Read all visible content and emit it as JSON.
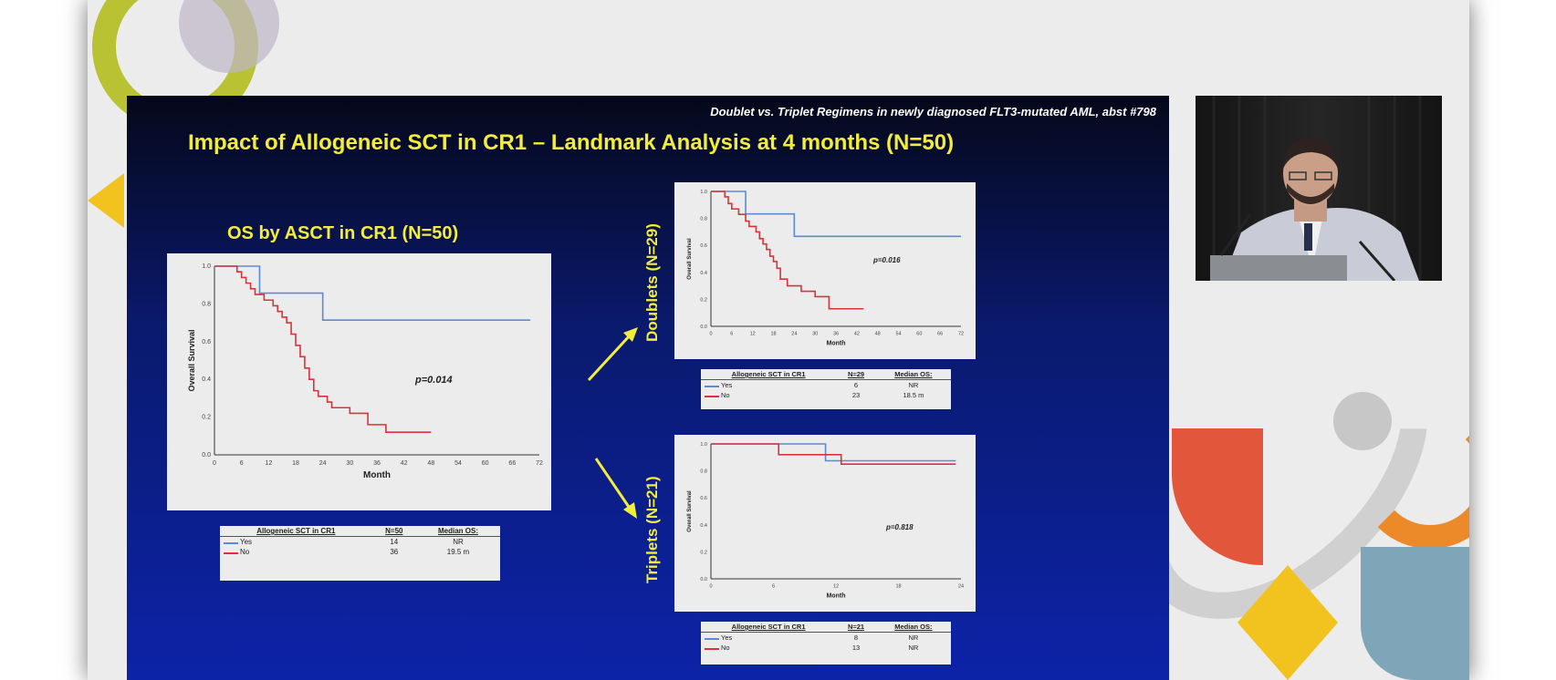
{
  "slide": {
    "header": "Doublet vs. Triplet Regimens in newly diagnosed FLT3-mutated AML, abst #798",
    "title": "Impact of Allogeneic SCT in CR1 – Landmark Analysis at 4 months (N=50)",
    "subtitle": "OS by ASCT in CR1 (N=50)",
    "doublets_label": "Doublets (N=29)",
    "triplets_label": "Triplets (N=21)"
  },
  "colors": {
    "yes": "#5b8bd6",
    "no": "#d8333a",
    "title": "#f2ec3c",
    "arrow": "#f2ec3c"
  },
  "chart_data": [
    {
      "type": "line",
      "title": "OS by ASCT in CR1 (N=50)",
      "xlabel": "Month",
      "ylabel": "Overall Survival",
      "annotation": "p=0.014",
      "xlim": [
        0,
        72
      ],
      "ylim": [
        0,
        1.0
      ],
      "xticks": [
        0,
        6,
        12,
        18,
        24,
        30,
        36,
        42,
        48,
        54,
        60,
        66,
        72
      ],
      "yticks": [
        0.0,
        0.2,
        0.4,
        0.6,
        0.8,
        1.0
      ],
      "series": [
        {
          "name": "Yes",
          "x": [
            0,
            10,
            10,
            24,
            24,
            70
          ],
          "y": [
            1.0,
            1.0,
            0.857,
            0.857,
            0.714,
            0.714
          ]
        },
        {
          "name": "No",
          "x": [
            0,
            5,
            6,
            7,
            8,
            9,
            11,
            13,
            14,
            15,
            16,
            17,
            18,
            19,
            20,
            21,
            22,
            23,
            25,
            26,
            30,
            34,
            38,
            42,
            48
          ],
          "y": [
            1.0,
            0.97,
            0.94,
            0.91,
            0.88,
            0.85,
            0.82,
            0.79,
            0.76,
            0.73,
            0.7,
            0.64,
            0.58,
            0.52,
            0.46,
            0.4,
            0.34,
            0.31,
            0.28,
            0.25,
            0.22,
            0.16,
            0.12,
            0.12,
            0.12
          ]
        }
      ]
    },
    {
      "type": "line",
      "xlabel": "Month",
      "ylabel": "Overall Survival",
      "annotation": "p=0.016",
      "xlim": [
        0,
        72
      ],
      "ylim": [
        0,
        1.0
      ],
      "xticks": [
        0,
        6,
        12,
        18,
        24,
        30,
        36,
        42,
        48,
        54,
        60,
        66,
        72
      ],
      "yticks": [
        0.0,
        0.2,
        0.4,
        0.6,
        0.8,
        1.0
      ],
      "series": [
        {
          "name": "Yes",
          "x": [
            0,
            10,
            10,
            24,
            24,
            72
          ],
          "y": [
            1.0,
            1.0,
            0.833,
            0.833,
            0.667,
            0.667
          ]
        },
        {
          "name": "No",
          "x": [
            0,
            4,
            5,
            6,
            8,
            10,
            11,
            13,
            14,
            15,
            16,
            17,
            18,
            19,
            20,
            22,
            26,
            30,
            34,
            38,
            44
          ],
          "y": [
            1.0,
            0.96,
            0.91,
            0.87,
            0.83,
            0.78,
            0.74,
            0.7,
            0.65,
            0.61,
            0.57,
            0.52,
            0.48,
            0.43,
            0.35,
            0.3,
            0.26,
            0.22,
            0.13,
            0.13,
            0.13
          ]
        }
      ]
    },
    {
      "type": "line",
      "xlabel": "Month",
      "ylabel": "Overall Survival",
      "annotation": "p=0.818",
      "xlim": [
        0,
        24
      ],
      "ylim": [
        0,
        1.0
      ],
      "xticks": [
        0,
        6,
        12,
        18,
        24
      ],
      "yticks": [
        0.0,
        0.2,
        0.4,
        0.6,
        0.8,
        1.0
      ],
      "series": [
        {
          "name": "Yes",
          "x": [
            0,
            11,
            11,
            23.5
          ],
          "y": [
            1.0,
            1.0,
            0.875,
            0.875
          ]
        },
        {
          "name": "No",
          "x": [
            0,
            6.5,
            6.5,
            12.5,
            12.5,
            23.5
          ],
          "y": [
            1.0,
            1.0,
            0.92,
            0.92,
            0.85,
            0.85
          ]
        }
      ]
    }
  ],
  "legends": {
    "main": {
      "header": [
        "Allogeneic SCT in CR1",
        "N=50",
        "Median OS:"
      ],
      "rows": [
        [
          "Yes",
          "14",
          "NR"
        ],
        [
          "No",
          "36",
          "19.5 m"
        ]
      ]
    },
    "doublet": {
      "header": [
        "Allogeneic SCT in CR1",
        "N=29",
        "Median OS:"
      ],
      "rows": [
        [
          "Yes",
          "6",
          "NR"
        ],
        [
          "No",
          "23",
          "18.5 m"
        ]
      ]
    },
    "triplet": {
      "header": [
        "Allogeneic SCT in CR1",
        "N=21",
        "Median OS:"
      ],
      "rows": [
        [
          "Yes",
          "8",
          "NR"
        ],
        [
          "No",
          "13",
          "NR"
        ]
      ]
    }
  }
}
